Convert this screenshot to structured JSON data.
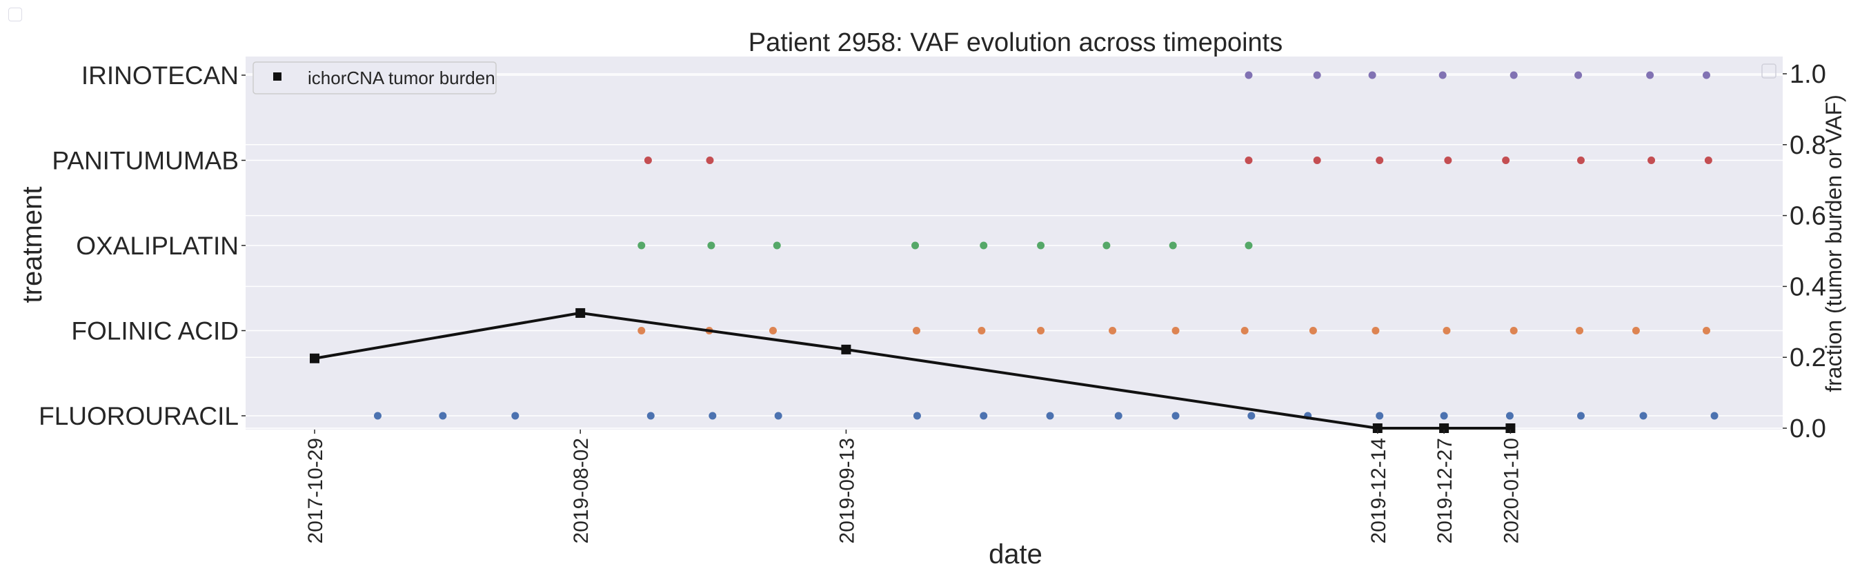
{
  "chart_data": {
    "type": "scatter",
    "title": "Patient 2958: VAF evolution across timepoints",
    "xlabel": "date",
    "ylabel": "treatment",
    "ylabel_right": "fraction (tumor burden or VAF)",
    "treatments": [
      "FLUOROURACIL",
      "FOLINIC ACID",
      "OXALIPLATIN",
      "PANITUMUMAB",
      "IRINOTECAN"
    ],
    "x_tick_dates": [
      "2017-10-29",
      "2019-08-02",
      "2019-09-13",
      "2019-12-14",
      "2019-12-27",
      "2020-01-10"
    ],
    "x_tick_positions": [
      0,
      4,
      8,
      16,
      17,
      18
    ],
    "right_ylim": [
      0,
      1
    ],
    "right_yticks": [
      "0.0",
      "0.2",
      "0.4",
      "0.6",
      "0.8",
      "1.0"
    ],
    "treatment_series": [
      {
        "name": "FLUOROURACIL",
        "color": "#4c72b0",
        "x": [
          0.95,
          1.93,
          3.02,
          5.06,
          5.99,
          6.98,
          9.07,
          10.07,
          11.07,
          12.1,
          12.96,
          14.1,
          14.95,
          16.03,
          17.0,
          17.99,
          19.06,
          20.0,
          21.07
        ]
      },
      {
        "name": "FOLINIC ACID",
        "color": "#dd8452",
        "x": [
          4.92,
          5.94,
          6.9,
          9.06,
          10.04,
          10.93,
          12.01,
          12.96,
          14.0,
          15.03,
          15.97,
          17.04,
          18.05,
          19.04,
          19.89,
          20.95
        ]
      },
      {
        "name": "OXALIPLATIN",
        "color": "#55a868",
        "x": [
          4.92,
          5.97,
          6.96,
          9.04,
          10.07,
          10.93,
          11.92,
          12.92,
          14.06
        ]
      },
      {
        "name": "PANITUMUMAB",
        "color": "#c44e52",
        "x": [
          5.02,
          5.95,
          14.06,
          15.09,
          16.03,
          17.06,
          17.93,
          19.06,
          20.12,
          20.98
        ]
      },
      {
        "name": "IRINOTECAN",
        "color": "#8172b3",
        "x": [
          14.06,
          15.09,
          15.92,
          16.98,
          18.05,
          19.02,
          20.1,
          20.95
        ]
      }
    ],
    "series": [
      {
        "name": "ichorCNA tumor burden",
        "color": "#111111",
        "x": [
          0,
          4,
          8,
          16,
          17,
          18
        ],
        "values": [
          0.197,
          0.325,
          0.222,
          0.0,
          0.0,
          0.0
        ]
      }
    ],
    "legend": {
      "entries": [
        "ichorCNA tumor burden"
      ],
      "placement": "top-left"
    }
  }
}
